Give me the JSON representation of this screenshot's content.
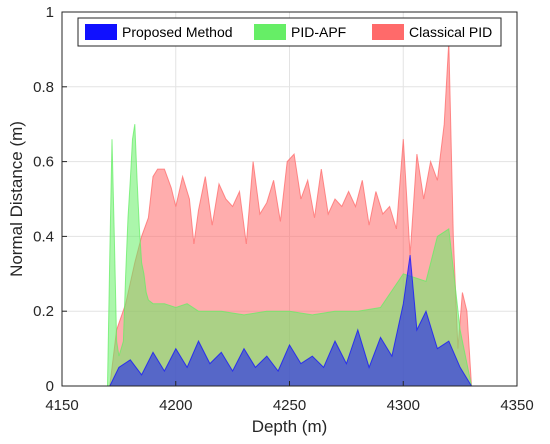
{
  "chart_data": {
    "type": "area",
    "xlabel": "Depth (m)",
    "ylabel": "Normal Distance (m)",
    "xlim": [
      4150,
      4350
    ],
    "ylim": [
      0,
      1
    ],
    "xticks": [
      4150,
      4200,
      4250,
      4300,
      4350
    ],
    "yticks": [
      0,
      0.2,
      0.4,
      0.6,
      0.8,
      1
    ],
    "xtick_labels": [
      "4150",
      "4200",
      "4250",
      "4300",
      "4350"
    ],
    "ytick_labels": [
      "0",
      "0.2",
      "0.4",
      "0.6",
      "0.8",
      "1"
    ],
    "grid": true,
    "legend_position": "top",
    "series": [
      {
        "name": "Classical PID",
        "color": "#ff6a6a",
        "x": [
          4171,
          4174,
          4178,
          4182,
          4185,
          4188,
          4190,
          4192,
          4195,
          4198,
          4200,
          4203,
          4206,
          4208,
          4210,
          4213,
          4216,
          4219,
          4222,
          4225,
          4228,
          4231,
          4234,
          4237,
          4240,
          4243,
          4246,
          4249,
          4252,
          4255,
          4258,
          4261,
          4264,
          4267,
          4270,
          4273,
          4276,
          4279,
          4282,
          4285,
          4288,
          4291,
          4294,
          4297,
          4300,
          4303,
          4306,
          4309,
          4312,
          4315,
          4318,
          4320,
          4322,
          4324,
          4326,
          4328,
          4330
        ],
        "values": [
          0,
          0.15,
          0.22,
          0.33,
          0.4,
          0.45,
          0.56,
          0.58,
          0.58,
          0.53,
          0.48,
          0.56,
          0.5,
          0.38,
          0.47,
          0.56,
          0.43,
          0.54,
          0.5,
          0.48,
          0.52,
          0.38,
          0.6,
          0.46,
          0.49,
          0.55,
          0.44,
          0.6,
          0.62,
          0.5,
          0.55,
          0.45,
          0.58,
          0.46,
          0.5,
          0.48,
          0.52,
          0.48,
          0.55,
          0.43,
          0.52,
          0.46,
          0.48,
          0.42,
          0.66,
          0.35,
          0.62,
          0.5,
          0.6,
          0.55,
          0.7,
          0.92,
          0.4,
          0.1,
          0.25,
          0.2,
          0
        ]
      },
      {
        "name": "PID-APF",
        "color": "#66ee66",
        "x": [
          4170,
          4171,
          4172,
          4173,
          4174,
          4175,
          4176,
          4177,
          4178,
          4179,
          4180,
          4181,
          4182,
          4183,
          4184,
          4185,
          4186,
          4187,
          4188,
          4190,
          4195,
          4200,
          4205,
          4210,
          4220,
          4230,
          4240,
          4250,
          4260,
          4270,
          4280,
          4290,
          4300,
          4310,
          4315,
          4320,
          4325,
          4330
        ],
        "values": [
          0,
          0.35,
          0.66,
          0.4,
          0.12,
          0.08,
          0.1,
          0.12,
          0.3,
          0.45,
          0.55,
          0.66,
          0.7,
          0.55,
          0.42,
          0.33,
          0.3,
          0.25,
          0.23,
          0.22,
          0.22,
          0.21,
          0.22,
          0.2,
          0.2,
          0.19,
          0.2,
          0.2,
          0.19,
          0.2,
          0.2,
          0.21,
          0.3,
          0.28,
          0.4,
          0.42,
          0.15,
          0
        ]
      },
      {
        "name": "Proposed Method",
        "color": "#1010ff",
        "x": [
          4171,
          4175,
          4180,
          4185,
          4190,
          4195,
          4200,
          4205,
          4210,
          4215,
          4220,
          4225,
          4230,
          4235,
          4240,
          4245,
          4250,
          4255,
          4260,
          4265,
          4270,
          4275,
          4280,
          4285,
          4290,
          4295,
          4300,
          4303,
          4306,
          4310,
          4315,
          4320,
          4325,
          4330
        ],
        "values": [
          0,
          0.05,
          0.07,
          0.03,
          0.09,
          0.04,
          0.1,
          0.05,
          0.12,
          0.06,
          0.09,
          0.04,
          0.1,
          0.05,
          0.08,
          0.04,
          0.11,
          0.06,
          0.08,
          0.05,
          0.12,
          0.06,
          0.15,
          0.05,
          0.13,
          0.08,
          0.22,
          0.35,
          0.15,
          0.2,
          0.1,
          0.12,
          0.05,
          0
        ]
      }
    ]
  }
}
